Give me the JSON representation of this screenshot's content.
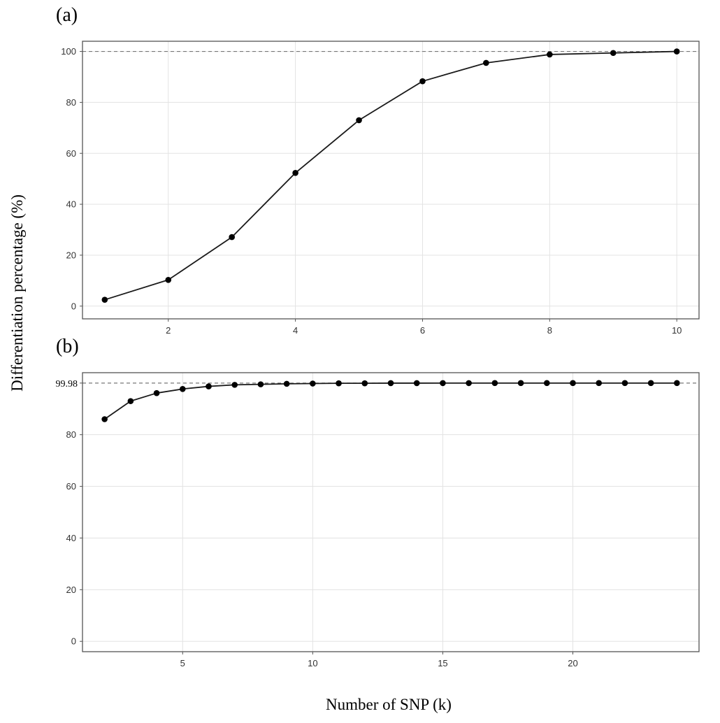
{
  "figure": {
    "shared_ylabel": "Differentiation percentage (%)",
    "shared_xlabel": "Number of SNP (k)"
  },
  "colors": {
    "line": "#1a1a1a",
    "grid": "#e3e3e3",
    "frame": "#555555",
    "reference": "#777777"
  },
  "chart_data": [
    {
      "panel_label": "(a)",
      "type": "line",
      "x": [
        1,
        2,
        3,
        4,
        5,
        6,
        7,
        8,
        9,
        10
      ],
      "series": [
        {
          "values": [
            2.5,
            10.3,
            27.1,
            52.3,
            73.0,
            88.3,
            95.5,
            98.8,
            99.4,
            100.0
          ]
        }
      ],
      "xlim": [
        0.65,
        10.35
      ],
      "ylim": [
        -5,
        104
      ],
      "xticks": [
        2,
        4,
        6,
        8,
        10
      ],
      "yticks": [
        0,
        20,
        40,
        60,
        80,
        100
      ],
      "reference_line": {
        "y": 100,
        "style": "dashed"
      },
      "grid": true,
      "markers": "filled circles"
    },
    {
      "panel_label": "(b)",
      "type": "line",
      "x": [
        2,
        3,
        4,
        5,
        6,
        7,
        8,
        9,
        10,
        11,
        12,
        13,
        14,
        15,
        16,
        17,
        18,
        19,
        20,
        21,
        22,
        23,
        24
      ],
      "series": [
        {
          "values": [
            86.0,
            93.0,
            96.1,
            97.7,
            98.7,
            99.3,
            99.5,
            99.7,
            99.8,
            99.9,
            99.9,
            99.95,
            99.96,
            99.97,
            99.97,
            99.98,
            99.98,
            99.98,
            99.98,
            99.98,
            99.98,
            99.98,
            99.98
          ]
        }
      ],
      "xlim": [
        1.15,
        24.85
      ],
      "ylim": [
        -4,
        104
      ],
      "xticks": [
        5,
        10,
        15,
        20
      ],
      "yticks": [
        0,
        20,
        40,
        60,
        80
      ],
      "reference_line": {
        "y": 99.98,
        "label": "99.98",
        "style": "dashed"
      },
      "grid": true,
      "markers": "filled circles"
    }
  ]
}
